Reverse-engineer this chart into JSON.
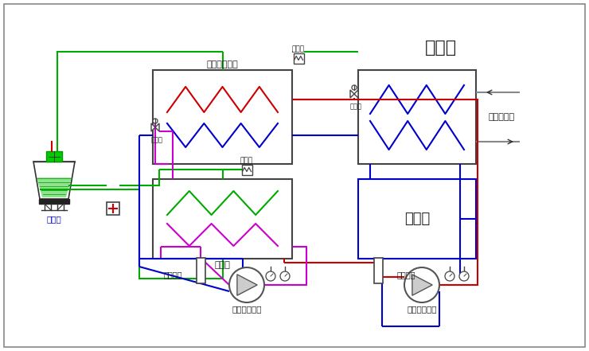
{
  "labels": {
    "cooling_tower": "冷却塔",
    "evap_condenser": "蒸发式冷凝器",
    "condenser": "冷凝器",
    "evaporator": "蒸发器",
    "expansion_tank": "膨胀罐",
    "oil_sep1": "油分离器",
    "oil_sep2": "油分离器",
    "high_comp": "高温级压缩机",
    "low_comp": "低温级压缩机",
    "filter1": "过滤器",
    "filter2": "过滤器",
    "exp_valve1": "膨胀阀",
    "exp_valve2": "膨胀阀",
    "alcohol_port": "酒精进出口"
  },
  "G": "#00aa00",
  "B": "#0000cc",
  "R": "#cc0000",
  "M": "#cc00cc",
  "LB": "#6666ff",
  "DG": "#444444",
  "cyan_text": "#0000cc"
}
